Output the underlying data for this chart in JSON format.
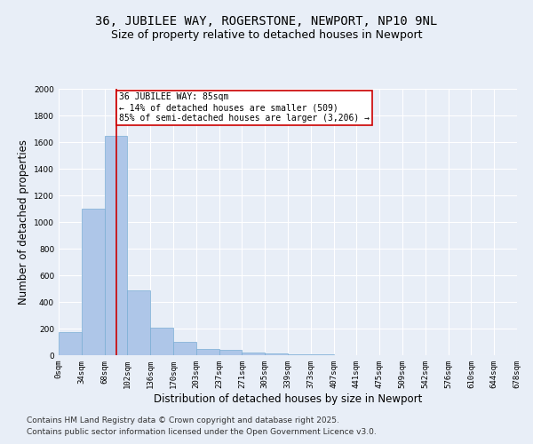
{
  "title1": "36, JUBILEE WAY, ROGERSTONE, NEWPORT, NP10 9NL",
  "title2": "Size of property relative to detached houses in Newport",
  "xlabel": "Distribution of detached houses by size in Newport",
  "ylabel": "Number of detached properties",
  "bin_labels": [
    "0sqm",
    "34sqm",
    "68sqm",
    "102sqm",
    "136sqm",
    "170sqm",
    "203sqm",
    "237sqm",
    "271sqm",
    "305sqm",
    "339sqm",
    "373sqm",
    "407sqm",
    "441sqm",
    "475sqm",
    "509sqm",
    "542sqm",
    "576sqm",
    "610sqm",
    "644sqm",
    "678sqm"
  ],
  "bar_heights": [
    175,
    1100,
    1650,
    490,
    205,
    100,
    45,
    40,
    20,
    15,
    10,
    5,
    0,
    0,
    0,
    0,
    0,
    0,
    0,
    0
  ],
  "bar_color": "#aec6e8",
  "bar_edge_color": "#7aadd4",
  "vline_x": 2.5,
  "vline_color": "#cc0000",
  "annotation_text": "36 JUBILEE WAY: 85sqm\n← 14% of detached houses are smaller (509)\n85% of semi-detached houses are larger (3,206) →",
  "annotation_box_color": "#ffffff",
  "annotation_box_edge": "#cc0000",
  "ylim": [
    0,
    2000
  ],
  "yticks": [
    0,
    200,
    400,
    600,
    800,
    1000,
    1200,
    1400,
    1600,
    1800,
    2000
  ],
  "footnote1": "Contains HM Land Registry data © Crown copyright and database right 2025.",
  "footnote2": "Contains public sector information licensed under the Open Government Licence v3.0.",
  "bg_color": "#e8eef7",
  "plot_bg_color": "#e8eef7",
  "grid_color": "#ffffff",
  "title_fontsize": 10,
  "subtitle_fontsize": 9,
  "axis_label_fontsize": 8.5,
  "tick_fontsize": 6.5,
  "footnote_fontsize": 6.5
}
